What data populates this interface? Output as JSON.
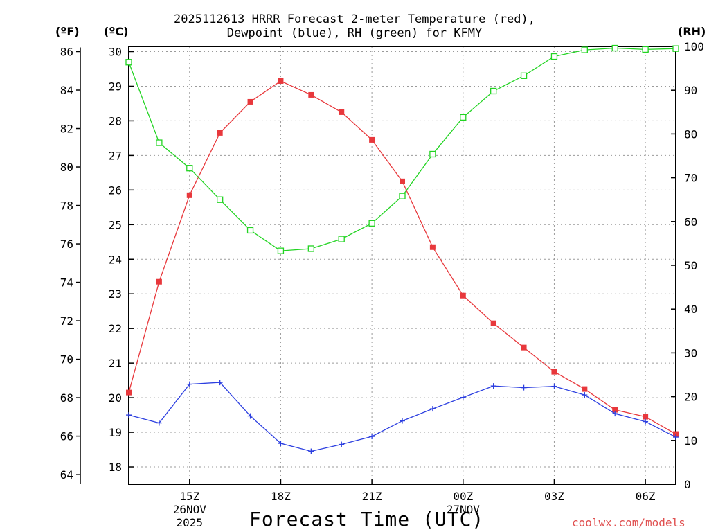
{
  "chart_data": {
    "type": "line",
    "title_line1": "2025112613 HRRR Forecast 2-meter Temperature (red),",
    "title_line2": "Dewpoint (blue), RH (green) for KFMY",
    "xlabel": "Forecast Time (UTC)",
    "watermark": "coolwx.com/models",
    "units": {
      "fahrenheit": "(ºF)",
      "celsius": "(ºC)",
      "rh": "(RH)"
    },
    "x_hours": [
      13,
      14,
      15,
      16,
      17,
      18,
      19,
      20,
      21,
      22,
      23,
      24,
      25,
      26,
      27,
      28,
      29,
      30,
      31
    ],
    "x_range": [
      13,
      31
    ],
    "x_ticks": [
      {
        "hour": 15,
        "lines": [
          "15Z",
          "26NOV",
          "2025"
        ]
      },
      {
        "hour": 18,
        "lines": [
          "18Z"
        ]
      },
      {
        "hour": 21,
        "lines": [
          "21Z"
        ]
      },
      {
        "hour": 24,
        "lines": [
          "00Z",
          "27NOV"
        ]
      },
      {
        "hour": 27,
        "lines": [
          "03Z"
        ]
      },
      {
        "hour": 30,
        "lines": [
          "06Z"
        ]
      }
    ],
    "y_celsius": {
      "min": 17.5,
      "max": 30.15,
      "ticks": [
        18,
        19,
        20,
        21,
        22,
        23,
        24,
        25,
        26,
        27,
        28,
        29,
        30
      ]
    },
    "y_fahrenheit": {
      "ticks": [
        64,
        66,
        68,
        70,
        72,
        74,
        76,
        78,
        80,
        82,
        84,
        86
      ]
    },
    "y_rh": {
      "min": 0,
      "max": 100,
      "ticks": [
        0,
        10,
        20,
        30,
        40,
        50,
        60,
        70,
        80,
        90,
        100
      ]
    },
    "series": [
      {
        "name": "Temperature",
        "axis": "celsius",
        "color": "#e8383c",
        "marker": "filled-square",
        "values": [
          20.15,
          23.35,
          25.85,
          27.65,
          28.55,
          29.15,
          28.75,
          28.25,
          27.45,
          26.25,
          24.35,
          22.95,
          22.15,
          21.45,
          20.75,
          20.25,
          19.65,
          19.45,
          18.95
        ]
      },
      {
        "name": "Dewpoint",
        "axis": "celsius",
        "color": "#2c3fe0",
        "marker": "plus",
        "values": [
          19.5,
          19.27,
          20.39,
          20.44,
          19.47,
          18.68,
          18.45,
          18.65,
          18.88,
          19.33,
          19.68,
          20.01,
          20.34,
          20.29,
          20.33,
          20.08,
          19.54,
          19.31,
          18.86
        ]
      },
      {
        "name": "RH",
        "axis": "rh",
        "color": "#22d422",
        "marker": "open-square",
        "values": [
          96.4,
          78.0,
          72.2,
          65.0,
          58.0,
          53.3,
          53.8,
          56.0,
          59.6,
          65.8,
          75.4,
          83.8,
          89.8,
          93.3,
          97.7,
          99.2,
          99.6,
          99.3,
          99.5
        ]
      }
    ]
  }
}
